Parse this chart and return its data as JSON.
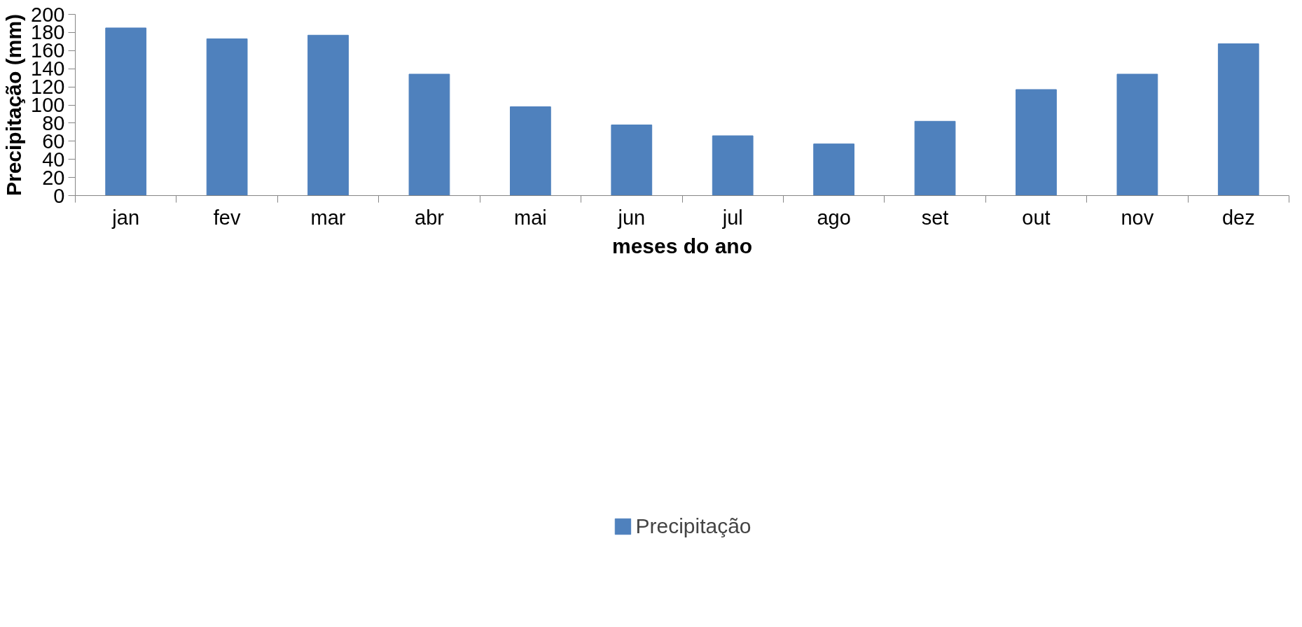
{
  "chart_data": {
    "type": "bar",
    "xlabel": "meses do ano",
    "ylabel": "Precipitação (mm)",
    "categories": [
      "jan",
      "fev",
      "mar",
      "abr",
      "mai",
      "jun",
      "jul",
      "ago",
      "set",
      "out",
      "nov",
      "dez"
    ],
    "series": [
      {
        "name": "Precipitação",
        "color": "#4f81bd",
        "values": [
          185,
          173,
          177,
          134,
          98,
          78,
          66,
          57,
          82,
          117,
          134,
          167.5
        ]
      }
    ],
    "ylim": [
      0,
      200
    ],
    "yticks": [
      0,
      20,
      40,
      60,
      80,
      100,
      120,
      140,
      160,
      180,
      200
    ],
    "grid": false,
    "legend": "bottom"
  }
}
